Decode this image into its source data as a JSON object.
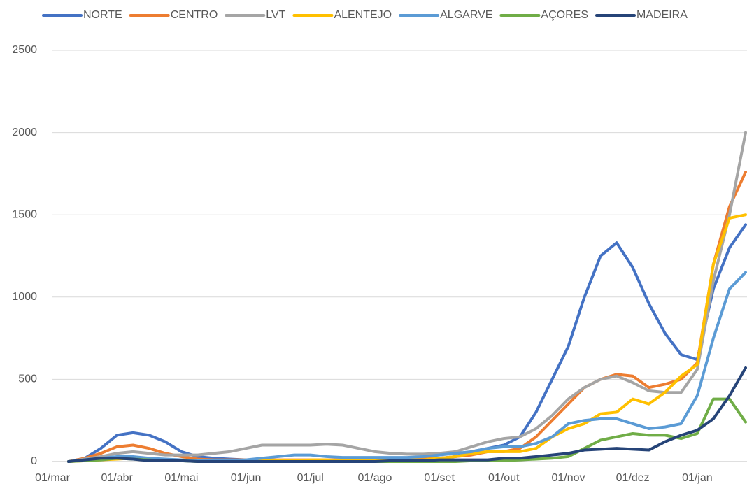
{
  "chart_data": {
    "type": "line",
    "categories": [
      "01/mar",
      null,
      null,
      null,
      "01/abr",
      null,
      null,
      null,
      "01/mai",
      null,
      null,
      null,
      "01/jun",
      null,
      null,
      null,
      "01/jul",
      null,
      null,
      null,
      "01/ago",
      null,
      null,
      null,
      "01/set",
      null,
      null,
      null,
      "01/out",
      null,
      null,
      null,
      "01/nov",
      null,
      null,
      null,
      "01/dez",
      null,
      null,
      null,
      "01/jan",
      null,
      null,
      null
    ],
    "series": [
      {
        "name": "NORTE",
        "color": "#4472c4",
        "values": [
          null,
          0,
          20,
          80,
          160,
          175,
          160,
          120,
          60,
          30,
          20,
          15,
          10,
          5,
          5,
          5,
          5,
          5,
          5,
          5,
          10,
          10,
          10,
          10,
          20,
          30,
          60,
          80,
          100,
          150,
          300,
          500,
          700,
          1000,
          1250,
          1330,
          1180,
          960,
          780,
          650,
          620,
          1050,
          1300,
          1440
        ]
      },
      {
        "name": "CENTRO",
        "color": "#ed7d31",
        "values": [
          null,
          0,
          20,
          50,
          90,
          100,
          80,
          50,
          30,
          15,
          10,
          10,
          10,
          10,
          10,
          10,
          10,
          10,
          10,
          10,
          10,
          10,
          10,
          15,
          20,
          30,
          40,
          60,
          60,
          80,
          150,
          250,
          350,
          450,
          500,
          530,
          520,
          450,
          470,
          500,
          600,
          1200,
          1550,
          1760
        ]
      },
      {
        "name": "LVT",
        "color": "#a5a5a5",
        "values": [
          null,
          0,
          15,
          30,
          50,
          60,
          50,
          40,
          40,
          40,
          50,
          60,
          80,
          100,
          100,
          100,
          100,
          105,
          100,
          80,
          60,
          50,
          45,
          45,
          50,
          60,
          90,
          120,
          140,
          150,
          200,
          280,
          380,
          450,
          500,
          520,
          480,
          430,
          420,
          420,
          560,
          1100,
          1500,
          2000
        ]
      },
      {
        "name": "ALENTEJO",
        "color": "#ffc000",
        "values": [
          null,
          0,
          5,
          10,
          15,
          20,
          15,
          10,
          10,
          5,
          5,
          5,
          5,
          5,
          5,
          5,
          10,
          10,
          5,
          5,
          5,
          5,
          10,
          10,
          20,
          30,
          50,
          60,
          60,
          60,
          80,
          150,
          200,
          230,
          290,
          300,
          380,
          350,
          420,
          520,
          590,
          1200,
          1480,
          1500
        ]
      },
      {
        "name": "ALGARVE",
        "color": "#5b9bd5",
        "values": [
          null,
          0,
          10,
          20,
          30,
          30,
          20,
          15,
          10,
          5,
          5,
          5,
          10,
          20,
          30,
          40,
          40,
          30,
          25,
          25,
          25,
          25,
          25,
          30,
          40,
          50,
          60,
          80,
          90,
          90,
          110,
          150,
          230,
          250,
          260,
          260,
          230,
          200,
          210,
          230,
          400,
          750,
          1050,
          1150
        ]
      },
      {
        "name": "AÇORES",
        "color": "#70ad47",
        "values": [
          null,
          0,
          5,
          10,
          20,
          15,
          10,
          5,
          5,
          0,
          0,
          0,
          0,
          0,
          0,
          0,
          0,
          0,
          0,
          0,
          0,
          0,
          0,
          0,
          0,
          0,
          5,
          5,
          5,
          10,
          15,
          20,
          30,
          80,
          130,
          150,
          170,
          160,
          160,
          140,
          170,
          380,
          380,
          240
        ]
      },
      {
        "name": "MADEIRA",
        "color": "#264478",
        "values": [
          null,
          0,
          10,
          20,
          20,
          15,
          5,
          5,
          5,
          0,
          0,
          0,
          0,
          0,
          0,
          0,
          0,
          0,
          0,
          0,
          0,
          5,
          5,
          5,
          10,
          10,
          10,
          10,
          20,
          20,
          30,
          40,
          50,
          70,
          75,
          80,
          75,
          70,
          120,
          160,
          190,
          260,
          400,
          570
        ]
      }
    ],
    "ylim": [
      0,
      2500
    ],
    "yticks": [
      0,
      500,
      1000,
      1500,
      2000,
      2500
    ],
    "grid": true,
    "legend": "top"
  }
}
